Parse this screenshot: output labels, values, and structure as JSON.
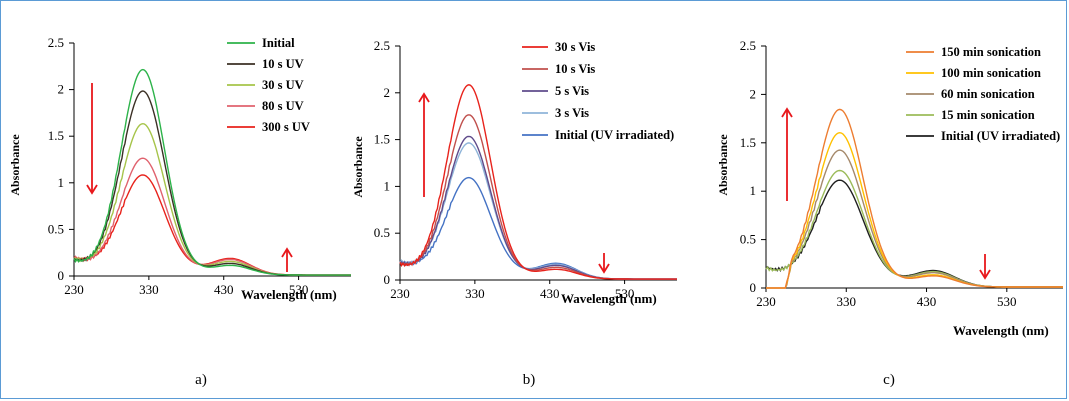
{
  "colors": {
    "frame": "#5b9bd5",
    "arrow": "#e8181c",
    "axis": "#000000"
  },
  "chart_data": [
    {
      "type": "line",
      "panel_label": "a)",
      "xlabel": "Wavelength (nm)",
      "ylabel": "Absorbance",
      "xlim": [
        230,
        600
      ],
      "ylim": [
        0,
        2.5
      ],
      "xticks": [
        230,
        330,
        430,
        530
      ],
      "yticks": [
        0,
        0.5,
        1,
        1.5,
        2,
        2.5
      ],
      "ytick_labels": [
        "0",
        "0.5",
        "1",
        "1.5",
        "2",
        "2.5"
      ],
      "grid": false,
      "legend_position": "top-right",
      "series": [
        {
          "name": "Initial",
          "color": "#2db34a",
          "peak": 2.17,
          "valley": 0.03,
          "band2": 0.1,
          "tail": 0.01
        },
        {
          "name": "10 s UV",
          "color": "#3b3025",
          "peak": 1.93,
          "valley": 0.04,
          "band2": 0.12,
          "tail": 0.01
        },
        {
          "name": "30 s UV",
          "color": "#a6c44a",
          "peak": 1.57,
          "valley": 0.05,
          "band2": 0.14,
          "tail": 0.01
        },
        {
          "name": "80 s UV",
          "color": "#e0626e",
          "peak": 1.19,
          "valley": 0.06,
          "band2": 0.16,
          "tail": 0.01
        },
        {
          "name": "300 s UV",
          "color": "#e8231c",
          "peak": 1.0,
          "valley": 0.07,
          "band2": 0.17,
          "tail": 0.01
        }
      ],
      "annotations": [
        {
          "type": "arrow",
          "direction": "down",
          "meaning": "absorbance decreases near 320 nm"
        },
        {
          "type": "arrow",
          "direction": "up",
          "meaning": "absorbance increases near 440 nm"
        }
      ]
    },
    {
      "type": "line",
      "panel_label": "b)",
      "xlabel": "Wavelength (nm)",
      "ylabel": "Absorbance",
      "xlim": [
        230,
        600
      ],
      "ylim": [
        0,
        2.5
      ],
      "xticks": [
        230,
        330,
        430,
        530
      ],
      "yticks": [
        0,
        0.5,
        1,
        1.5,
        2,
        2.5
      ],
      "ytick_labels": [
        "0",
        "0.5",
        "1",
        "1.5",
        "2",
        "2.5"
      ],
      "grid": false,
      "legend_position": "top-right",
      "series": [
        {
          "name": "30 s Vis",
          "color": "#e8231c",
          "peak": 2.04,
          "valley": 0.03,
          "band2": 0.1,
          "tail": 0.01
        },
        {
          "name": "10 s Vis",
          "color": "#c0504d",
          "peak": 1.71,
          "valley": 0.04,
          "band2": 0.12,
          "tail": 0.01
        },
        {
          "name": "5 s Vis",
          "color": "#5f4b8b",
          "peak": 1.47,
          "valley": 0.05,
          "band2": 0.14,
          "tail": 0.01
        },
        {
          "name": "3 s Vis",
          "color": "#8fb4d9",
          "peak": 1.39,
          "valley": 0.06,
          "band2": 0.15,
          "tail": 0.01
        },
        {
          "name": "Initial (UV irradiated)",
          "color": "#4472c4",
          "peak": 1.01,
          "valley": 0.07,
          "band2": 0.16,
          "tail": 0.01
        }
      ],
      "annotations": [
        {
          "type": "arrow",
          "direction": "up",
          "meaning": "absorbance increases near 320 nm"
        },
        {
          "type": "arrow",
          "direction": "down",
          "meaning": "absorbance decreases near 440 nm"
        }
      ]
    },
    {
      "type": "line",
      "panel_label": "c)",
      "xlabel": "Wavelength (nm)",
      "ylabel": "Absorbance",
      "xlim": [
        230,
        600
      ],
      "ylim": [
        0,
        2.5
      ],
      "xticks": [
        230,
        330,
        430,
        530
      ],
      "yticks": [
        0,
        0.5,
        1,
        1.5,
        2,
        2.5
      ],
      "ytick_labels": [
        "0",
        "0.5",
        "1",
        "1.5",
        "2",
        "2.5"
      ],
      "grid": false,
      "legend_position": "top-right",
      "series": [
        {
          "name": "150 min sonication",
          "color": "#ed7d31",
          "peak": 1.79,
          "valley": 0.04,
          "band2": 0.11,
          "tail": 0.01
        },
        {
          "name": "100 min sonication",
          "color": "#ffc000",
          "peak": 1.54,
          "valley": 0.05,
          "band2": 0.12,
          "tail": 0.01
        },
        {
          "name": "60 min sonication",
          "color": "#a5896b",
          "peak": 1.35,
          "valley": 0.06,
          "band2": 0.14,
          "tail": 0.01
        },
        {
          "name": "15 min sonication",
          "color": "#9bbb59",
          "peak": 1.13,
          "valley": 0.07,
          "band2": 0.15,
          "tail": 0.01
        },
        {
          "name": "Initial (UV irradiated)",
          "color": "#1f1f1f",
          "peak": 1.02,
          "valley": 0.08,
          "band2": 0.16,
          "tail": 0.01
        }
      ],
      "annotations": [
        {
          "type": "arrow",
          "direction": "up",
          "meaning": "absorbance increases near 320 nm"
        },
        {
          "type": "arrow",
          "direction": "down",
          "meaning": "absorbance decreases near 440 nm"
        }
      ]
    }
  ]
}
